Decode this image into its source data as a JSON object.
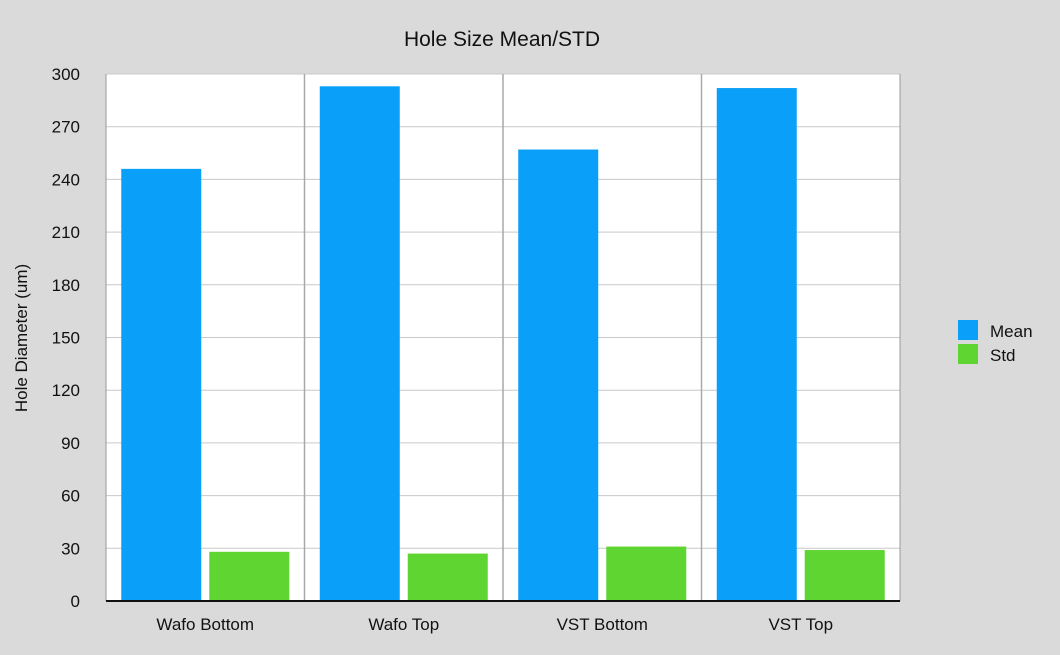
{
  "chart_data": {
    "type": "bar",
    "title": "Hole Size Mean/STD",
    "xlabel": "",
    "ylabel": "Hole Diameter (um)",
    "categories": [
      "Wafo Bottom",
      "Wafo Top",
      "VST Bottom",
      "VST Top"
    ],
    "series": [
      {
        "name": "Mean",
        "color": "#0a9ff9",
        "values": [
          246,
          293,
          257,
          292
        ]
      },
      {
        "name": "Std",
        "color": "#5ed530",
        "values": [
          28,
          27,
          31,
          29
        ]
      }
    ],
    "ylim": [
      0,
      300
    ],
    "yticks": [
      0,
      30,
      60,
      90,
      120,
      150,
      180,
      210,
      240,
      270,
      300
    ],
    "grid": true,
    "legend_position": "right"
  }
}
